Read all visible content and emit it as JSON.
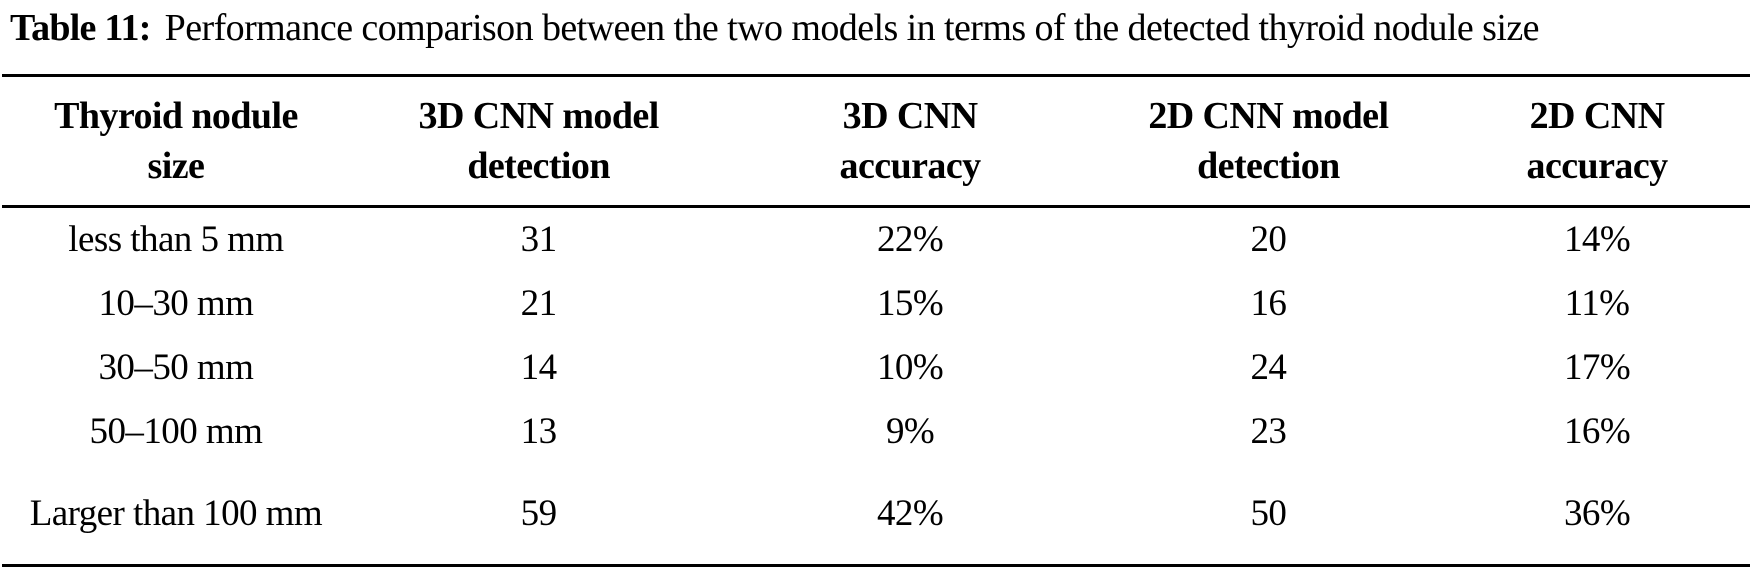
{
  "caption": {
    "label": "Table 11:",
    "text": "Performance comparison between the two models in terms of the detected thyroid nodule size"
  },
  "table": {
    "headers": [
      {
        "lines": [
          "Thyroid nodule",
          "size"
        ]
      },
      {
        "lines": [
          "3D CNN model",
          "detection"
        ]
      },
      {
        "lines": [
          "3D CNN",
          "accuracy"
        ]
      },
      {
        "lines": [
          "2D CNN model",
          "detection"
        ]
      },
      {
        "lines": [
          "2D CNN",
          "accuracy"
        ]
      }
    ],
    "rows": [
      {
        "cells": [
          "less than 5 mm",
          "31",
          "22%",
          "20",
          "14%"
        ]
      },
      {
        "cells": [
          "10–30 mm",
          "21",
          "15%",
          "16",
          "11%"
        ]
      },
      {
        "cells": [
          "30–50 mm",
          "14",
          "10%",
          "24",
          "17%"
        ]
      },
      {
        "cells": [
          "50–100 mm",
          "13",
          "9%",
          "23",
          "16%"
        ]
      },
      {
        "cells": [
          "Larger than 100 mm",
          "59",
          "42%",
          "50",
          "36%"
        ]
      }
    ]
  },
  "colors": {
    "text": "#000000",
    "rule": "#000000",
    "background": "#ffffff"
  }
}
